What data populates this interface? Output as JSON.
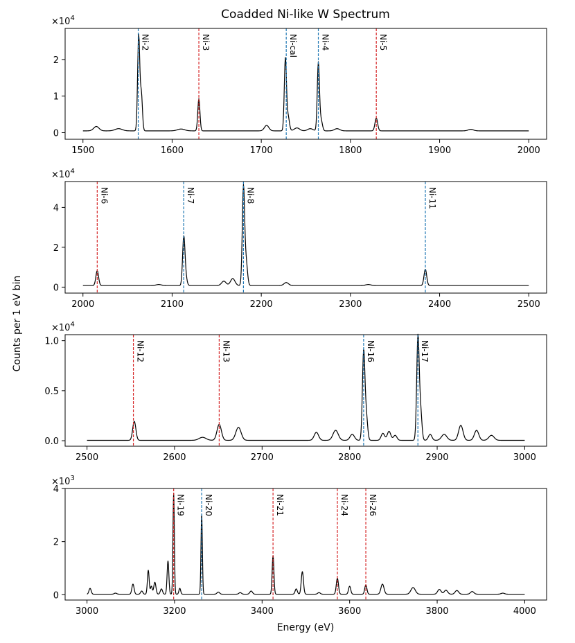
{
  "title": "Coadded Ni-like W Spectrum",
  "xlabel": "Energy (eV)",
  "ylabel": "Counts per 1 eV bin",
  "colors": {
    "trace": "#000000",
    "blue_line": "#1f77b4",
    "red_line": "#d62728"
  },
  "chart_data": [
    {
      "type": "line",
      "xlim": [
        1480,
        2020
      ],
      "ylim": [
        -0.18,
        2.85
      ],
      "xticks": [
        1500,
        1600,
        1700,
        1800,
        1900,
        2000
      ],
      "xtick_labels": [
        "1500",
        "1600",
        "1700",
        "1800",
        "1900",
        "2000"
      ],
      "yticks": [
        0,
        1,
        2
      ],
      "ytick_labels": [
        "0",
        "1",
        "2"
      ],
      "multiplier": "×10",
      "exponent": "4",
      "x_range": [
        1500,
        2000
      ],
      "baseline": 0.05,
      "peaks": [
        {
          "x": 1515,
          "h": 0.12,
          "w": 3
        },
        {
          "x": 1540,
          "h": 0.06,
          "w": 4
        },
        {
          "x": 1562.5,
          "h": 2.6,
          "w": 1.2
        },
        {
          "x": 1565.5,
          "h": 1.0,
          "w": 1.2
        },
        {
          "x": 1610,
          "h": 0.05,
          "w": 4
        },
        {
          "x": 1630,
          "h": 0.88,
          "w": 1.2
        },
        {
          "x": 1706,
          "h": 0.15,
          "w": 2.5
        },
        {
          "x": 1727,
          "h": 1.95,
          "w": 1.2
        },
        {
          "x": 1730,
          "h": 0.4,
          "w": 1.5
        },
        {
          "x": 1740,
          "h": 0.08,
          "w": 3
        },
        {
          "x": 1755,
          "h": 0.06,
          "w": 3
        },
        {
          "x": 1764,
          "h": 1.85,
          "w": 1.2
        },
        {
          "x": 1767,
          "h": 0.3,
          "w": 1.5
        },
        {
          "x": 1785,
          "h": 0.06,
          "w": 3
        },
        {
          "x": 1829,
          "h": 0.35,
          "w": 1.5
        },
        {
          "x": 1935,
          "h": 0.04,
          "w": 3
        }
      ],
      "lines": [
        {
          "label": "Ni-2",
          "x": 1562,
          "color": "blue"
        },
        {
          "label": "Ni-3",
          "x": 1630,
          "color": "red"
        },
        {
          "label": "Ni-cal",
          "x": 1728,
          "color": "blue"
        },
        {
          "label": "Ni-4",
          "x": 1764,
          "color": "blue"
        },
        {
          "label": "Ni-5",
          "x": 1829,
          "color": "red"
        }
      ]
    },
    {
      "type": "line",
      "xlim": [
        1980,
        2520
      ],
      "ylim": [
        -0.3,
        5.3
      ],
      "xticks": [
        2000,
        2100,
        2200,
        2300,
        2400,
        2500
      ],
      "xtick_labels": [
        "2000",
        "2100",
        "2200",
        "2300",
        "2400",
        "2500"
      ],
      "yticks": [
        0,
        2,
        4
      ],
      "ytick_labels": [
        "0",
        "2",
        "4"
      ],
      "multiplier": "×10",
      "exponent": "4",
      "x_range": [
        2000,
        2500
      ],
      "baseline": 0.08,
      "peaks": [
        {
          "x": 2016,
          "h": 0.75,
          "w": 1.5
        },
        {
          "x": 2085,
          "h": 0.05,
          "w": 3
        },
        {
          "x": 2113,
          "h": 2.3,
          "w": 1.3
        },
        {
          "x": 2115,
          "h": 0.5,
          "w": 1.5
        },
        {
          "x": 2158,
          "h": 0.22,
          "w": 2.5
        },
        {
          "x": 2168,
          "h": 0.35,
          "w": 2.5
        },
        {
          "x": 2180,
          "h": 4.9,
          "w": 1.3
        },
        {
          "x": 2183,
          "h": 1.2,
          "w": 1.5
        },
        {
          "x": 2228,
          "h": 0.15,
          "w": 2.5
        },
        {
          "x": 2320,
          "h": 0.05,
          "w": 3
        },
        {
          "x": 2384,
          "h": 0.82,
          "w": 1.5
        }
      ],
      "lines": [
        {
          "label": "Ni-6",
          "x": 2016,
          "color": "red"
        },
        {
          "label": "Ni-7",
          "x": 2113,
          "color": "blue"
        },
        {
          "label": "Ni-8",
          "x": 2180,
          "color": "blue"
        },
        {
          "label": "Ni-11",
          "x": 2384,
          "color": "blue"
        }
      ]
    },
    {
      "type": "line",
      "xlim": [
        2475,
        3025
      ],
      "ylim": [
        -0.055,
        1.06
      ],
      "xticks": [
        2500,
        2600,
        2700,
        2800,
        2900,
        3000
      ],
      "xtick_labels": [
        "2500",
        "2600",
        "2700",
        "2800",
        "2900",
        "3000"
      ],
      "yticks": [
        0,
        0.5,
        1.0
      ],
      "ytick_labels": [
        "0.0",
        "0.5",
        "1.0"
      ],
      "multiplier": "×10",
      "exponent": "4",
      "x_range": [
        2500,
        3000
      ],
      "baseline": 0.004,
      "peaks": [
        {
          "x": 2554,
          "h": 0.19,
          "w": 1.8
        },
        {
          "x": 2632,
          "h": 0.03,
          "w": 4
        },
        {
          "x": 2651,
          "h": 0.16,
          "w": 2.5
        },
        {
          "x": 2673,
          "h": 0.13,
          "w": 3
        },
        {
          "x": 2762,
          "h": 0.08,
          "w": 2.5
        },
        {
          "x": 2784,
          "h": 0.1,
          "w": 3
        },
        {
          "x": 2803,
          "h": 0.06,
          "w": 2.5
        },
        {
          "x": 2816,
          "h": 0.88,
          "w": 1.4
        },
        {
          "x": 2819,
          "h": 0.25,
          "w": 1.5
        },
        {
          "x": 2838,
          "h": 0.07,
          "w": 2
        },
        {
          "x": 2845,
          "h": 0.09,
          "w": 2
        },
        {
          "x": 2852,
          "h": 0.05,
          "w": 2
        },
        {
          "x": 2878,
          "h": 1.02,
          "w": 1.4
        },
        {
          "x": 2881,
          "h": 0.3,
          "w": 1.5
        },
        {
          "x": 2892,
          "h": 0.06,
          "w": 2
        },
        {
          "x": 2908,
          "h": 0.06,
          "w": 3
        },
        {
          "x": 2927,
          "h": 0.15,
          "w": 2.5
        },
        {
          "x": 2945,
          "h": 0.1,
          "w": 2.5
        },
        {
          "x": 2962,
          "h": 0.05,
          "w": 3
        }
      ],
      "lines": [
        {
          "label": "Ni-12",
          "x": 2553,
          "color": "red"
        },
        {
          "label": "Ni-13",
          "x": 2651,
          "color": "red"
        },
        {
          "label": "Ni-16",
          "x": 2816,
          "color": "blue"
        },
        {
          "label": "Ni-17",
          "x": 2878,
          "color": "blue"
        }
      ]
    },
    {
      "type": "line",
      "xlim": [
        2950,
        4050
      ],
      "ylim": [
        -0.2,
        4.0
      ],
      "xticks": [
        3000,
        3200,
        3400,
        3600,
        3800,
        4000
      ],
      "xtick_labels": [
        "3000",
        "3200",
        "3400",
        "3600",
        "3800",
        "4000"
      ],
      "yticks": [
        0,
        2,
        4
      ],
      "ytick_labels": [
        "0",
        "2",
        "4"
      ],
      "multiplier": "×10",
      "exponent": "3",
      "x_range": [
        3000,
        4000
      ],
      "baseline": 0.02,
      "peaks": [
        {
          "x": 3007,
          "h": 0.22,
          "w": 2.5
        },
        {
          "x": 3065,
          "h": 0.04,
          "w": 3
        },
        {
          "x": 3105,
          "h": 0.38,
          "w": 2.5
        },
        {
          "x": 3125,
          "h": 0.12,
          "w": 2.5
        },
        {
          "x": 3140,
          "h": 0.9,
          "w": 2
        },
        {
          "x": 3147,
          "h": 0.3,
          "w": 2
        },
        {
          "x": 3155,
          "h": 0.45,
          "w": 2.5
        },
        {
          "x": 3170,
          "h": 0.2,
          "w": 2.5
        },
        {
          "x": 3185,
          "h": 1.25,
          "w": 2
        },
        {
          "x": 3198,
          "h": 3.8,
          "w": 1.6
        },
        {
          "x": 3212,
          "h": 0.22,
          "w": 2
        },
        {
          "x": 3262,
          "h": 3.0,
          "w": 1.6
        },
        {
          "x": 3300,
          "h": 0.08,
          "w": 3
        },
        {
          "x": 3350,
          "h": 0.06,
          "w": 3
        },
        {
          "x": 3375,
          "h": 0.12,
          "w": 3
        },
        {
          "x": 3425,
          "h": 1.45,
          "w": 2
        },
        {
          "x": 3478,
          "h": 0.2,
          "w": 2.5
        },
        {
          "x": 3492,
          "h": 0.85,
          "w": 2.5
        },
        {
          "x": 3530,
          "h": 0.06,
          "w": 3
        },
        {
          "x": 3572,
          "h": 0.6,
          "w": 2.5
        },
        {
          "x": 3600,
          "h": 0.3,
          "w": 2.5
        },
        {
          "x": 3637,
          "h": 0.35,
          "w": 2.5
        },
        {
          "x": 3675,
          "h": 0.38,
          "w": 3.5
        },
        {
          "x": 3745,
          "h": 0.25,
          "w": 5
        },
        {
          "x": 3805,
          "h": 0.18,
          "w": 4
        },
        {
          "x": 3820,
          "h": 0.15,
          "w": 4
        },
        {
          "x": 3845,
          "h": 0.14,
          "w": 4
        },
        {
          "x": 3880,
          "h": 0.1,
          "w": 4
        },
        {
          "x": 3950,
          "h": 0.04,
          "w": 4
        }
      ],
      "lines": [
        {
          "label": "Ni-19",
          "x": 3198,
          "color": "red"
        },
        {
          "label": "Ni-20",
          "x": 3262,
          "color": "blue"
        },
        {
          "label": "Ni-21",
          "x": 3425,
          "color": "red"
        },
        {
          "label": "Ni-24",
          "x": 3572,
          "color": "red"
        },
        {
          "label": "Ni-26",
          "x": 3637,
          "color": "red"
        }
      ]
    }
  ]
}
